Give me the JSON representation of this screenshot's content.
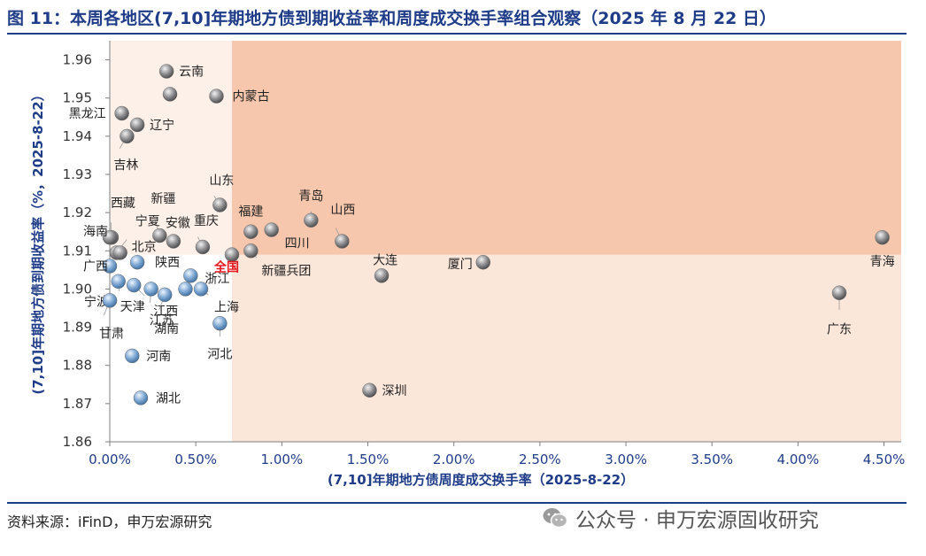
{
  "figure_title": "图 11：本周各地区(7,10]年期地方债到期收益率和周度成交换手率组合观察（2025 年 8 月 22 日）",
  "source_note": "资料来源：iFinD，申万宏源研究",
  "watermark": "公众号 · 申万宏源固收研究",
  "colors": {
    "title": "#1f3c88",
    "axis_label": "#1f3c88",
    "highlight_region": "#f6c7ad",
    "base_region": "#fbe6da",
    "blue_point": "#7ea8d4",
    "gray_point": "#8f8f92",
    "national_label": "#e8141c"
  },
  "icons": {
    "watermark": "wechat-icon"
  },
  "chart_data": {
    "type": "scatter",
    "title": "",
    "xlabel": "(7,10]年期地方债周度成交换手率（2025-8-22）",
    "ylabel": "(7,10]年期地方债到期收益率（%，2025-8-22）",
    "xlim": [
      0.0,
      4.6
    ],
    "ylim": [
      1.86,
      1.965
    ],
    "x_ticks": [
      0.0,
      0.5,
      1.0,
      1.5,
      2.0,
      2.5,
      3.0,
      3.5,
      4.0,
      4.5
    ],
    "x_tick_labels": [
      "0.00%",
      "0.50%",
      "1.00%",
      "1.50%",
      "2.00%",
      "2.50%",
      "3.00%",
      "3.50%",
      "4.00%",
      "4.50%"
    ],
    "y_ticks": [
      1.86,
      1.87,
      1.88,
      1.89,
      1.9,
      1.91,
      1.92,
      1.93,
      1.94,
      1.95,
      1.96
    ],
    "y_tick_labels": [
      "1.86",
      "1.87",
      "1.88",
      "1.89",
      "1.90",
      "1.91",
      "1.92",
      "1.93",
      "1.94",
      "1.95",
      "1.96"
    ],
    "grid": false,
    "reference": {
      "name": "全国",
      "x": 0.71,
      "y": 1.909
    },
    "points": [
      {
        "name": "云南",
        "x": 0.33,
        "y": 1.957,
        "label": "云南"
      },
      {
        "name": "",
        "x": 0.35,
        "y": 1.951,
        "label": ""
      },
      {
        "name": "内蒙古",
        "x": 0.62,
        "y": 1.9505,
        "label": "内蒙古"
      },
      {
        "name": "黑龙江",
        "x": 0.07,
        "y": 1.946,
        "label": "黑龙江"
      },
      {
        "name": "辽宁",
        "x": 0.16,
        "y": 1.943,
        "label": "辽宁"
      },
      {
        "name": "吉林",
        "x": 0.1,
        "y": 1.94,
        "label": "吉林"
      },
      {
        "name": "山东",
        "x": 0.64,
        "y": 1.922,
        "label": "山东"
      },
      {
        "name": "青岛",
        "x": 1.17,
        "y": 1.918,
        "label": "青岛"
      },
      {
        "name": "福建",
        "x": 0.82,
        "y": 1.915,
        "label": "福建"
      },
      {
        "name": "四川",
        "x": 0.94,
        "y": 1.9155,
        "label": "四川"
      },
      {
        "name": "山西",
        "x": 1.35,
        "y": 1.9125,
        "label": "山西"
      },
      {
        "name": "重庆",
        "x": 0.54,
        "y": 1.911,
        "label": "重庆"
      },
      {
        "name": "安徽",
        "x": 0.37,
        "y": 1.9125,
        "label": "安徽"
      },
      {
        "name": "新疆",
        "x": 0.29,
        "y": 1.914,
        "label": "新疆"
      },
      {
        "name": "西藏",
        "x": 0.01,
        "y": 1.9135,
        "label": "西藏"
      },
      {
        "name": "海南",
        "x": 0.0,
        "y": 1.9135,
        "label": "海南"
      },
      {
        "name": "宁夏",
        "x": 0.04,
        "y": 1.9095,
        "label": "宁夏"
      },
      {
        "name": "北京",
        "x": 0.06,
        "y": 1.9095,
        "label": "北京"
      },
      {
        "name": "广西",
        "x": 0.0,
        "y": 1.906,
        "label": "广西"
      },
      {
        "name": "陕西",
        "x": 0.16,
        "y": 1.907,
        "label": "陕西"
      },
      {
        "name": "新疆兵团",
        "x": 0.82,
        "y": 1.91,
        "label": "新疆兵团"
      },
      {
        "name": "浙江",
        "x": 0.47,
        "y": 1.9035,
        "label": "浙江"
      },
      {
        "name": "大连",
        "x": 1.58,
        "y": 1.9035,
        "label": "大连"
      },
      {
        "name": "厦门",
        "x": 2.17,
        "y": 1.907,
        "label": "厦门"
      },
      {
        "name": "青海",
        "x": 4.49,
        "y": 1.9135,
        "label": "青海"
      },
      {
        "name": "广东",
        "x": 4.24,
        "y": 1.899,
        "label": "广东"
      },
      {
        "name": "宁波",
        "x": 0.0,
        "y": 1.897,
        "label": "宁波"
      },
      {
        "name": "天津",
        "x": 0.05,
        "y": 1.902,
        "label": "天津"
      },
      {
        "name": "江西",
        "x": 0.14,
        "y": 1.901,
        "label": "江西"
      },
      {
        "name": "江苏",
        "x": 0.24,
        "y": 1.9,
        "label": "江苏"
      },
      {
        "name": "湖南",
        "x": 0.32,
        "y": 1.8985,
        "label": "湖南"
      },
      {
        "name": "",
        "x": 0.44,
        "y": 1.9,
        "label": ""
      },
      {
        "name": "上海",
        "x": 0.53,
        "y": 1.9,
        "label": "上海"
      },
      {
        "name": "甘肃",
        "x": 0.0,
        "y": 1.897,
        "label": "甘肃"
      },
      {
        "name": "河北",
        "x": 0.64,
        "y": 1.891,
        "label": "河北"
      },
      {
        "name": "河南",
        "x": 0.13,
        "y": 1.8825,
        "label": "河南"
      },
      {
        "name": "湖北",
        "x": 0.18,
        "y": 1.8715,
        "label": "湖北"
      },
      {
        "name": "深圳",
        "x": 1.51,
        "y": 1.8735,
        "label": "深圳"
      }
    ]
  }
}
